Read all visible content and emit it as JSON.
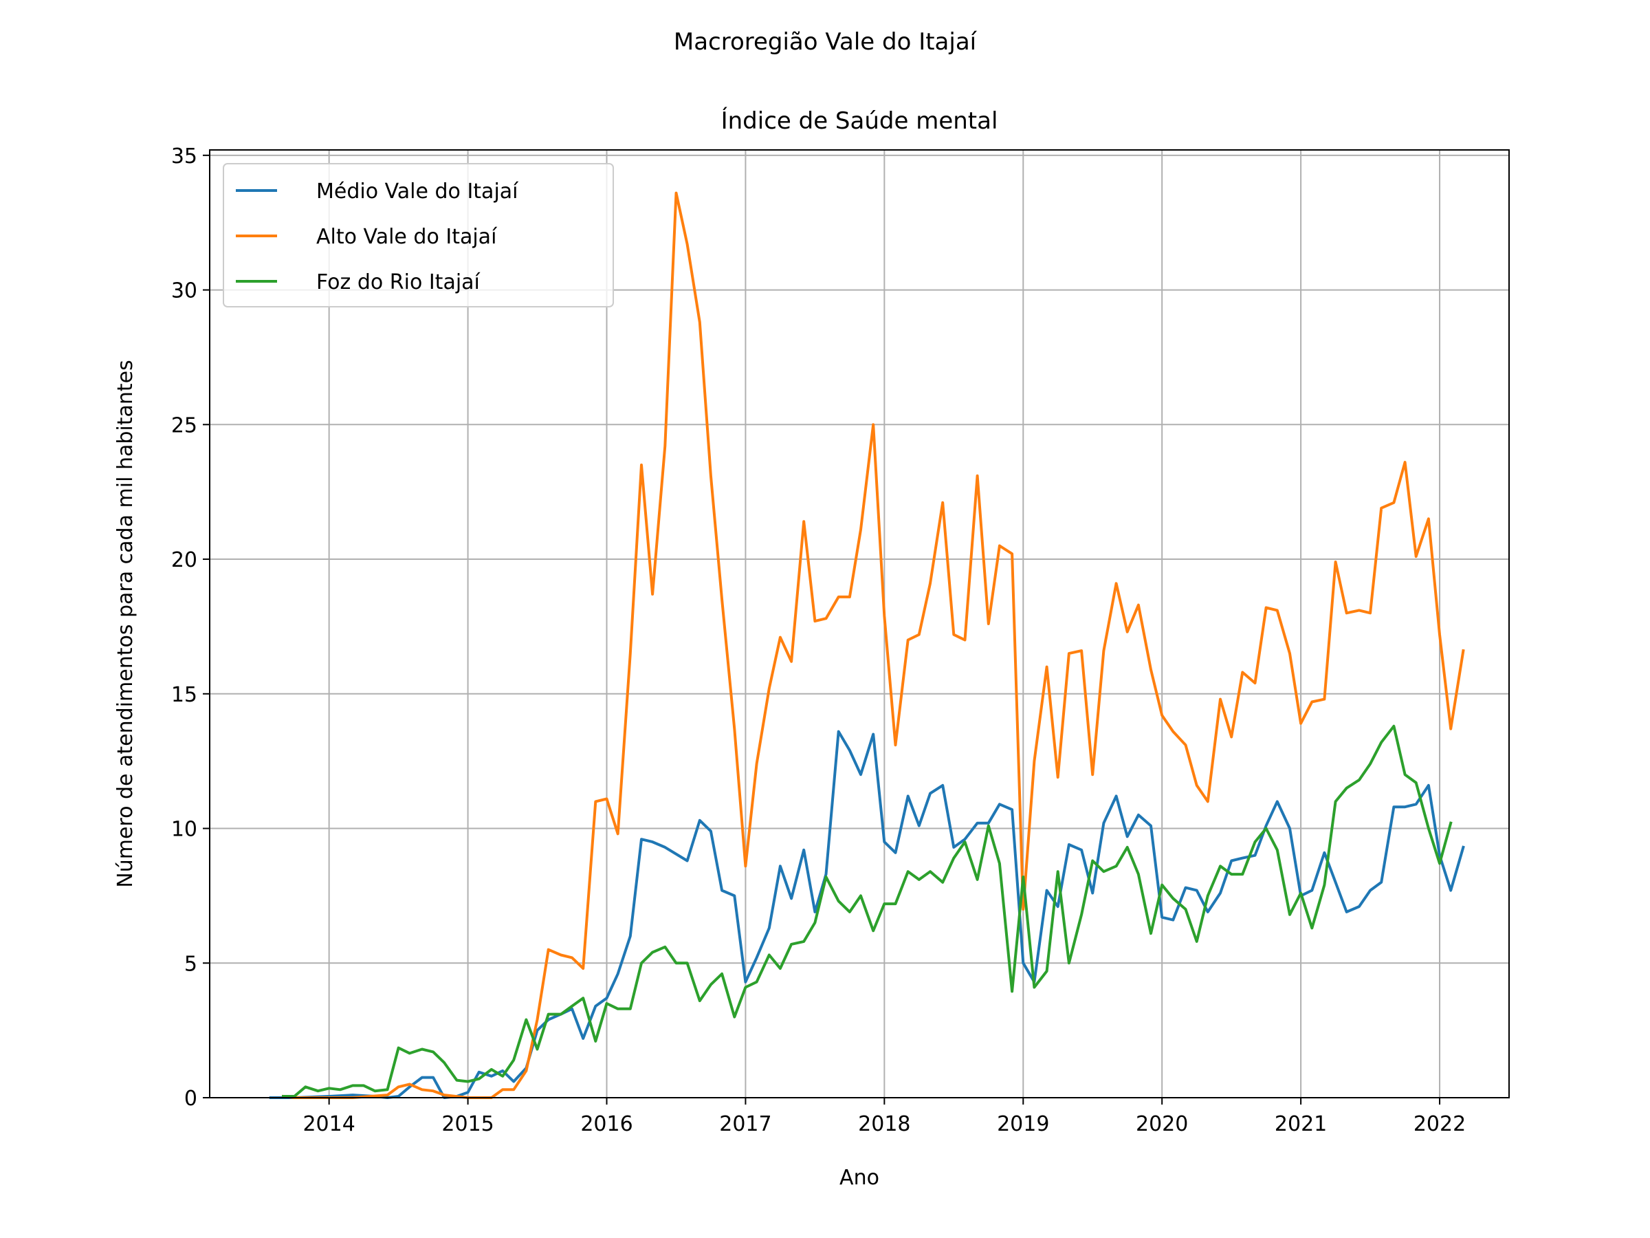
{
  "chart_data": {
    "type": "line",
    "suptitle": "Macroregião Vale do Itajaí",
    "title": "Índice de Saúde mental",
    "xlabel": "Ano",
    "ylabel": "Número de atendimentos para cada mil habitantes",
    "xlim": [
      2013.14,
      2022.5
    ],
    "ylim": [
      0,
      35.2
    ],
    "xticks": [
      2014,
      2015,
      2016,
      2017,
      2018,
      2019,
      2020,
      2021,
      2022
    ],
    "xtick_labels": [
      "2014",
      "2015",
      "2016",
      "2017",
      "2018",
      "2019",
      "2020",
      "2021",
      "2022"
    ],
    "yticks": [
      0,
      5,
      10,
      15,
      20,
      25,
      30,
      35
    ],
    "ytick_labels": [
      "0",
      "5",
      "10",
      "15",
      "20",
      "25",
      "30",
      "35"
    ],
    "grid": true,
    "legend_position": "top-left",
    "series": [
      {
        "name": "Médio Vale do Itajaí",
        "color": "#1f77b4",
        "points": [
          [
            2013.58,
            0
          ],
          [
            2013.67,
            0
          ],
          [
            2013.75,
            0
          ],
          [
            2014.0,
            0.05
          ],
          [
            2014.17,
            0.1
          ],
          [
            2014.33,
            0.05
          ],
          [
            2014.42,
            0
          ],
          [
            2014.5,
            0.05
          ],
          [
            2014.58,
            0.4
          ],
          [
            2014.67,
            0.75
          ],
          [
            2014.75,
            0.75
          ],
          [
            2014.83,
            0
          ],
          [
            2014.92,
            0.05
          ],
          [
            2015.0,
            0.2
          ],
          [
            2015.08,
            0.95
          ],
          [
            2015.17,
            0.8
          ],
          [
            2015.25,
            1.0
          ],
          [
            2015.33,
            0.6
          ],
          [
            2015.42,
            1.1
          ],
          [
            2015.5,
            2.5
          ],
          [
            2015.58,
            2.9
          ],
          [
            2015.67,
            3.1
          ],
          [
            2015.75,
            3.3
          ],
          [
            2015.83,
            2.2
          ],
          [
            2015.92,
            3.4
          ],
          [
            2016.0,
            3.7
          ],
          [
            2016.08,
            4.6
          ],
          [
            2016.17,
            6.0
          ],
          [
            2016.25,
            9.6
          ],
          [
            2016.33,
            9.5
          ],
          [
            2016.42,
            9.3
          ],
          [
            2016.58,
            8.8
          ],
          [
            2016.67,
            10.3
          ],
          [
            2016.75,
            9.9
          ],
          [
            2016.83,
            7.7
          ],
          [
            2016.92,
            7.5
          ],
          [
            2017.0,
            4.3
          ],
          [
            2017.08,
            5.2
          ],
          [
            2017.17,
            6.3
          ],
          [
            2017.25,
            8.6
          ],
          [
            2017.33,
            7.4
          ],
          [
            2017.42,
            9.2
          ],
          [
            2017.5,
            6.9
          ],
          [
            2017.58,
            8.3
          ],
          [
            2017.67,
            13.6
          ],
          [
            2017.75,
            12.9
          ],
          [
            2017.83,
            12.0
          ],
          [
            2017.92,
            13.5
          ],
          [
            2018.0,
            9.5
          ],
          [
            2018.08,
            9.1
          ],
          [
            2018.17,
            11.2
          ],
          [
            2018.25,
            10.1
          ],
          [
            2018.33,
            11.3
          ],
          [
            2018.42,
            11.6
          ],
          [
            2018.5,
            9.3
          ],
          [
            2018.58,
            9.6
          ],
          [
            2018.67,
            10.2
          ],
          [
            2018.75,
            10.2
          ],
          [
            2018.83,
            10.9
          ],
          [
            2018.92,
            10.7
          ],
          [
            2019.0,
            5.0
          ],
          [
            2019.08,
            4.3
          ],
          [
            2019.17,
            7.7
          ],
          [
            2019.25,
            7.1
          ],
          [
            2019.33,
            9.4
          ],
          [
            2019.42,
            9.2
          ],
          [
            2019.5,
            7.6
          ],
          [
            2019.58,
            10.2
          ],
          [
            2019.67,
            11.2
          ],
          [
            2019.75,
            9.7
          ],
          [
            2019.83,
            10.5
          ],
          [
            2019.92,
            10.1
          ],
          [
            2020.0,
            6.7
          ],
          [
            2020.08,
            6.6
          ],
          [
            2020.17,
            7.8
          ],
          [
            2020.25,
            7.7
          ],
          [
            2020.33,
            6.9
          ],
          [
            2020.42,
            7.6
          ],
          [
            2020.5,
            8.8
          ],
          [
            2020.58,
            8.9
          ],
          [
            2020.67,
            9.0
          ],
          [
            2020.75,
            10.1
          ],
          [
            2020.83,
            11.0
          ],
          [
            2020.92,
            10.0
          ],
          [
            2021.0,
            7.5
          ],
          [
            2021.08,
            7.7
          ],
          [
            2021.17,
            9.1
          ],
          [
            2021.25,
            8.0
          ],
          [
            2021.33,
            6.9
          ],
          [
            2021.42,
            7.1
          ],
          [
            2021.5,
            7.7
          ],
          [
            2021.58,
            8.0
          ],
          [
            2021.67,
            10.8
          ],
          [
            2021.75,
            10.8
          ],
          [
            2021.83,
            10.9
          ],
          [
            2021.92,
            11.6
          ],
          [
            2022.0,
            9.0
          ],
          [
            2022.08,
            7.7
          ],
          [
            2022.17,
            9.3
          ]
        ]
      },
      {
        "name": "Alto Vale do Itajaí",
        "color": "#ff7f0e",
        "points": [
          [
            2013.67,
            0.05
          ],
          [
            2013.75,
            0
          ],
          [
            2014.17,
            0
          ],
          [
            2014.42,
            0.1
          ],
          [
            2014.5,
            0.4
          ],
          [
            2014.58,
            0.5
          ],
          [
            2014.67,
            0.3
          ],
          [
            2014.75,
            0.25
          ],
          [
            2014.83,
            0.1
          ],
          [
            2015.0,
            0
          ],
          [
            2015.17,
            0
          ],
          [
            2015.25,
            0.3
          ],
          [
            2015.33,
            0.3
          ],
          [
            2015.42,
            1.0
          ],
          [
            2015.5,
            2.9
          ],
          [
            2015.58,
            5.5
          ],
          [
            2015.67,
            5.3
          ],
          [
            2015.75,
            5.2
          ],
          [
            2015.83,
            4.8
          ],
          [
            2015.92,
            11.0
          ],
          [
            2016.0,
            11.1
          ],
          [
            2016.08,
            9.8
          ],
          [
            2016.17,
            16.5
          ],
          [
            2016.25,
            23.5
          ],
          [
            2016.33,
            18.7
          ],
          [
            2016.42,
            24.2
          ],
          [
            2016.5,
            33.6
          ],
          [
            2016.58,
            31.7
          ],
          [
            2016.67,
            28.8
          ],
          [
            2016.75,
            23.1
          ],
          [
            2016.83,
            18.5
          ],
          [
            2016.92,
            13.7
          ],
          [
            2017.0,
            8.6
          ],
          [
            2017.08,
            12.4
          ],
          [
            2017.17,
            15.2
          ],
          [
            2017.25,
            17.1
          ],
          [
            2017.33,
            16.2
          ],
          [
            2017.42,
            21.4
          ],
          [
            2017.5,
            17.7
          ],
          [
            2017.58,
            17.8
          ],
          [
            2017.67,
            18.6
          ],
          [
            2017.75,
            18.6
          ],
          [
            2017.83,
            21.1
          ],
          [
            2017.92,
            25.0
          ],
          [
            2018.0,
            17.9
          ],
          [
            2018.08,
            13.1
          ],
          [
            2018.17,
            17.0
          ],
          [
            2018.25,
            17.2
          ],
          [
            2018.33,
            19.1
          ],
          [
            2018.42,
            22.1
          ],
          [
            2018.5,
            17.2
          ],
          [
            2018.58,
            17.0
          ],
          [
            2018.67,
            23.1
          ],
          [
            2018.75,
            17.6
          ],
          [
            2018.83,
            20.5
          ],
          [
            2018.92,
            20.2
          ],
          [
            2019.0,
            7.0
          ],
          [
            2019.08,
            12.5
          ],
          [
            2019.17,
            16.0
          ],
          [
            2019.25,
            11.9
          ],
          [
            2019.33,
            16.5
          ],
          [
            2019.42,
            16.6
          ],
          [
            2019.5,
            12.0
          ],
          [
            2019.58,
            16.6
          ],
          [
            2019.67,
            19.1
          ],
          [
            2019.75,
            17.3
          ],
          [
            2019.83,
            18.3
          ],
          [
            2019.92,
            15.9
          ],
          [
            2020.0,
            14.2
          ],
          [
            2020.08,
            13.6
          ],
          [
            2020.17,
            13.1
          ],
          [
            2020.25,
            11.6
          ],
          [
            2020.33,
            11.0
          ],
          [
            2020.42,
            14.8
          ],
          [
            2020.5,
            13.4
          ],
          [
            2020.58,
            15.8
          ],
          [
            2020.67,
            15.4
          ],
          [
            2020.75,
            18.2
          ],
          [
            2020.83,
            18.1
          ],
          [
            2020.92,
            16.5
          ],
          [
            2021.0,
            13.9
          ],
          [
            2021.08,
            14.7
          ],
          [
            2021.17,
            14.8
          ],
          [
            2021.25,
            19.9
          ],
          [
            2021.33,
            18.0
          ],
          [
            2021.42,
            18.1
          ],
          [
            2021.5,
            18.0
          ],
          [
            2021.58,
            21.9
          ],
          [
            2021.67,
            22.1
          ],
          [
            2021.75,
            23.6
          ],
          [
            2021.83,
            20.1
          ],
          [
            2021.92,
            21.5
          ],
          [
            2022.0,
            17.2
          ],
          [
            2022.08,
            13.7
          ],
          [
            2022.17,
            16.6
          ]
        ]
      },
      {
        "name": "Foz do Rio Itajaí",
        "color": "#2ca02c",
        "points": [
          [
            2013.67,
            0.05
          ],
          [
            2013.75,
            0.05
          ],
          [
            2013.83,
            0.4
          ],
          [
            2013.92,
            0.25
          ],
          [
            2014.0,
            0.35
          ],
          [
            2014.08,
            0.3
          ],
          [
            2014.17,
            0.45
          ],
          [
            2014.25,
            0.45
          ],
          [
            2014.33,
            0.25
          ],
          [
            2014.42,
            0.3
          ],
          [
            2014.5,
            1.85
          ],
          [
            2014.58,
            1.65
          ],
          [
            2014.67,
            1.8
          ],
          [
            2014.75,
            1.7
          ],
          [
            2014.83,
            1.3
          ],
          [
            2014.92,
            0.65
          ],
          [
            2015.0,
            0.6
          ],
          [
            2015.08,
            0.7
          ],
          [
            2015.17,
            1.05
          ],
          [
            2015.25,
            0.8
          ],
          [
            2015.33,
            1.4
          ],
          [
            2015.42,
            2.9
          ],
          [
            2015.5,
            1.8
          ],
          [
            2015.58,
            3.1
          ],
          [
            2015.67,
            3.1
          ],
          [
            2015.75,
            3.4
          ],
          [
            2015.83,
            3.7
          ],
          [
            2015.92,
            2.1
          ],
          [
            2016.0,
            3.5
          ],
          [
            2016.08,
            3.3
          ],
          [
            2016.17,
            3.3
          ],
          [
            2016.25,
            5.0
          ],
          [
            2016.33,
            5.4
          ],
          [
            2016.42,
            5.6
          ],
          [
            2016.5,
            5.0
          ],
          [
            2016.58,
            5.0
          ],
          [
            2016.67,
            3.6
          ],
          [
            2016.75,
            4.2
          ],
          [
            2016.83,
            4.6
          ],
          [
            2016.92,
            3.0
          ],
          [
            2017.0,
            4.1
          ],
          [
            2017.08,
            4.3
          ],
          [
            2017.17,
            5.3
          ],
          [
            2017.25,
            4.8
          ],
          [
            2017.33,
            5.7
          ],
          [
            2017.42,
            5.8
          ],
          [
            2017.5,
            6.5
          ],
          [
            2017.58,
            8.2
          ],
          [
            2017.67,
            7.3
          ],
          [
            2017.75,
            6.9
          ],
          [
            2017.83,
            7.5
          ],
          [
            2017.92,
            6.2
          ],
          [
            2018.0,
            7.2
          ],
          [
            2018.08,
            7.2
          ],
          [
            2018.17,
            8.4
          ],
          [
            2018.25,
            8.1
          ],
          [
            2018.33,
            8.4
          ],
          [
            2018.42,
            8.0
          ],
          [
            2018.5,
            8.9
          ],
          [
            2018.58,
            9.5
          ],
          [
            2018.67,
            8.1
          ],
          [
            2018.75,
            10.1
          ],
          [
            2018.83,
            8.7
          ],
          [
            2018.92,
            3.95
          ],
          [
            2019.0,
            8.2
          ],
          [
            2019.08,
            4.1
          ],
          [
            2019.17,
            4.7
          ],
          [
            2019.25,
            8.4
          ],
          [
            2019.33,
            5.0
          ],
          [
            2019.42,
            6.8
          ],
          [
            2019.5,
            8.8
          ],
          [
            2019.58,
            8.4
          ],
          [
            2019.67,
            8.6
          ],
          [
            2019.75,
            9.3
          ],
          [
            2019.83,
            8.3
          ],
          [
            2019.92,
            6.1
          ],
          [
            2020.0,
            7.9
          ],
          [
            2020.08,
            7.4
          ],
          [
            2020.17,
            7.0
          ],
          [
            2020.25,
            5.8
          ],
          [
            2020.33,
            7.5
          ],
          [
            2020.42,
            8.6
          ],
          [
            2020.5,
            8.3
          ],
          [
            2020.58,
            8.3
          ],
          [
            2020.67,
            9.5
          ],
          [
            2020.75,
            10.0
          ],
          [
            2020.83,
            9.2
          ],
          [
            2020.92,
            6.8
          ],
          [
            2021.0,
            7.6
          ],
          [
            2021.08,
            6.3
          ],
          [
            2021.17,
            7.9
          ],
          [
            2021.25,
            11.0
          ],
          [
            2021.33,
            11.5
          ],
          [
            2021.42,
            11.8
          ],
          [
            2021.5,
            12.4
          ],
          [
            2021.58,
            13.2
          ],
          [
            2021.67,
            13.8
          ],
          [
            2021.75,
            12.0
          ],
          [
            2021.83,
            11.7
          ],
          [
            2021.92,
            10.0
          ],
          [
            2022.0,
            8.7
          ],
          [
            2022.08,
            10.2
          ]
        ]
      }
    ]
  }
}
